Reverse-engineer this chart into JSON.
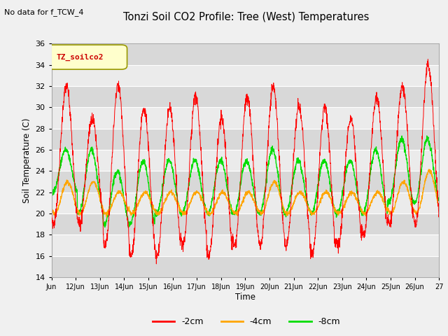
{
  "title": "Tonzi Soil CO2 Profile: Tree (West) Temperatures",
  "no_data_text": "No data for f_TCW_4",
  "ylabel": "Soil Temperature (C)",
  "xlabel": "Time",
  "ylim": [
    14,
    36
  ],
  "yticks": [
    14,
    16,
    18,
    20,
    22,
    24,
    26,
    28,
    30,
    32,
    34,
    36
  ],
  "xtick_labels": [
    "Jun",
    "12Jun",
    "13Jun",
    "14Jun",
    "15Jun",
    "16Jun",
    "17Jun",
    "18Jun",
    "19Jun",
    "20Jun",
    "21Jun",
    "22Jun",
    "23Jun",
    "24Jun",
    "25Jun",
    "26Jun",
    "27"
  ],
  "legend_box_label": "TZ_soilco2",
  "legend_items": [
    "-2cm",
    "-4cm",
    "-8cm"
  ],
  "legend_colors": [
    "#ff0000",
    "#ffa500",
    "#00dd00"
  ],
  "fig_facecolor": "#f0f0f0",
  "plot_facecolor": "#e8e8e8",
  "grid_color": "#ffffff",
  "band_color_light": "#ebebeb",
  "band_color_dark": "#d8d8d8",
  "color_2cm": "#ff0000",
  "color_4cm": "#ffa500",
  "color_8cm": "#00dd00"
}
